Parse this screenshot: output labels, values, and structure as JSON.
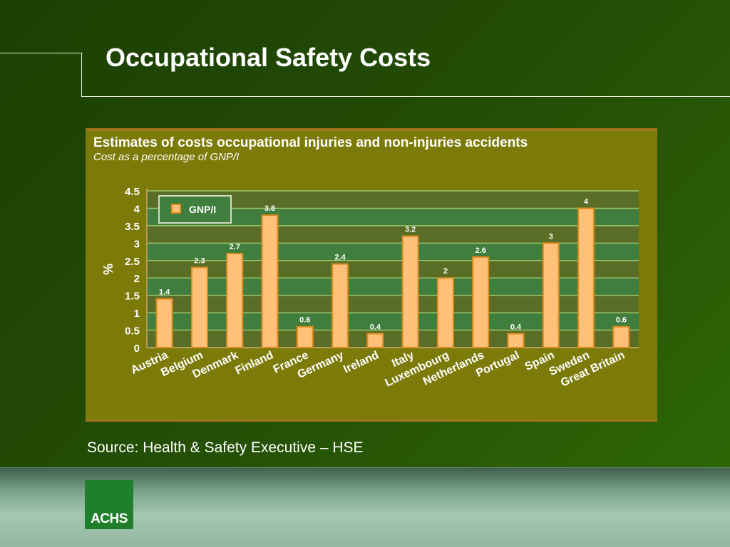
{
  "slide": {
    "title": "Occupational Safety Costs",
    "source": "Source: Health & Safety Executive – HSE",
    "logo_text": "ACHS"
  },
  "colors": {
    "background": "#234c05",
    "panel": "#7c7b0a",
    "bar_fill": "#ffc07a",
    "bar_stroke": "#e08a1c",
    "band_dark": "#596d27",
    "band_light": "#3f7e3c",
    "footer": "#a4c7b2",
    "logo": "#1f7f2a"
  },
  "chart_data": {
    "type": "bar",
    "title": "Estimates of costs occupational injuries and non-injuries accidents",
    "subtitle": "Cost as a percentage of GNP/I",
    "xlabel": "",
    "ylabel": "%",
    "ylim": [
      0,
      4.5
    ],
    "yticks": [
      0,
      0.5,
      1,
      1.5,
      2,
      2.5,
      3,
      3.5,
      4,
      4.5
    ],
    "ytick_labels": [
      "0",
      "0.5",
      "1",
      "1.5",
      "2",
      "2.5",
      "3",
      "3.5",
      "4",
      "4.5"
    ],
    "categories": [
      "Austria",
      "Belgium",
      "Denmark",
      "Finland",
      "France",
      "Germany",
      "Ireland",
      "Italy",
      "Luxembourg",
      "Netherlands",
      "Portugal",
      "Spain",
      "Sweden",
      "Great Britain"
    ],
    "series": [
      {
        "name": "GNP/I",
        "values": [
          1.4,
          2.3,
          2.7,
          3.8,
          0.6,
          2.4,
          0.4,
          3.2,
          2,
          2.6,
          0.4,
          3,
          4,
          0.6
        ],
        "labels": [
          "1.4",
          "2.3",
          "2.7",
          "3.8",
          "0.6",
          "2.4",
          "0.4",
          "3.2",
          "2",
          "2.6",
          "0.4",
          "3",
          "4",
          "0.6"
        ]
      }
    ],
    "legend": {
      "position": "top-left",
      "entries": [
        "GNP/I"
      ]
    },
    "grid": true
  }
}
